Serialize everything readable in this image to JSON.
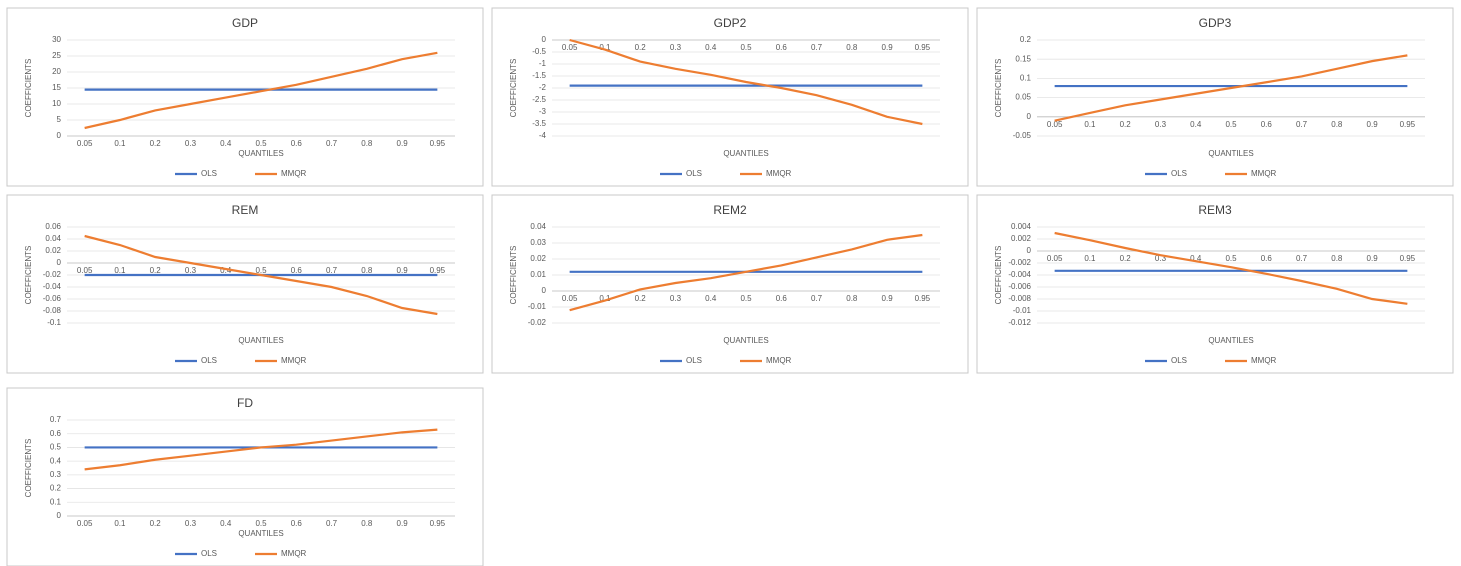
{
  "chart_data": [
    {
      "type": "line",
      "title": "GDP",
      "x_label": "QUANTILES",
      "y_label": "COEFFICIENTS",
      "categories": [
        "0.05",
        "0.1",
        "0.2",
        "0.3",
        "0.4",
        "0.5",
        "0.6",
        "0.7",
        "0.8",
        "0.9",
        "0.95"
      ],
      "series": [
        {
          "name": "OLS",
          "color": "#4472c4",
          "values": [
            14.5,
            14.5,
            14.5,
            14.5,
            14.5,
            14.5,
            14.5,
            14.5,
            14.5,
            14.5,
            14.5
          ]
        },
        {
          "name": "MMQR",
          "color": "#ed7d31",
          "values": [
            2.5,
            5,
            8,
            10,
            12,
            14,
            16,
            18.5,
            21,
            24,
            26
          ]
        }
      ],
      "ylim": [
        0,
        30
      ],
      "yticks": [
        0,
        5,
        10,
        15,
        20,
        25,
        30
      ],
      "grid": true,
      "legend": "bottom"
    },
    {
      "type": "line",
      "title": "GDP2",
      "x_label": "QUANTILES",
      "y_label": "COEFFICIENTS",
      "categories": [
        "0.05",
        "0.1",
        "0.2",
        "0.3",
        "0.4",
        "0.5",
        "0.6",
        "0.7",
        "0.8",
        "0.9",
        "0.95"
      ],
      "series": [
        {
          "name": "OLS",
          "color": "#4472c4",
          "values": [
            -1.9,
            -1.9,
            -1.9,
            -1.9,
            -1.9,
            -1.9,
            -1.9,
            -1.9,
            -1.9,
            -1.9,
            -1.9
          ]
        },
        {
          "name": "MMQR",
          "color": "#ed7d31",
          "values": [
            0,
            -0.4,
            -0.9,
            -1.2,
            -1.45,
            -1.75,
            -2.0,
            -2.3,
            -2.7,
            -3.2,
            -3.5
          ]
        }
      ],
      "ylim": [
        -4,
        0
      ],
      "yticks": [
        -4,
        -3.5,
        -3,
        -2.5,
        -2,
        -1.5,
        -1,
        -0.5,
        0
      ],
      "grid": true,
      "legend": "bottom"
    },
    {
      "type": "line",
      "title": "GDP3",
      "x_label": "QUANTILES",
      "y_label": "COEFFICIENTS",
      "categories": [
        "0.05",
        "0.1",
        "0.2",
        "0.3",
        "0.4",
        "0.5",
        "0.6",
        "0.7",
        "0.8",
        "0.9",
        "0.95"
      ],
      "series": [
        {
          "name": "OLS",
          "color": "#4472c4",
          "values": [
            0.08,
            0.08,
            0.08,
            0.08,
            0.08,
            0.08,
            0.08,
            0.08,
            0.08,
            0.08,
            0.08
          ]
        },
        {
          "name": "MMQR",
          "color": "#ed7d31",
          "values": [
            -0.01,
            0.01,
            0.03,
            0.045,
            0.06,
            0.075,
            0.09,
            0.105,
            0.125,
            0.145,
            0.16
          ]
        }
      ],
      "ylim": [
        -0.05,
        0.2
      ],
      "yticks": [
        -0.05,
        0,
        0.05,
        0.1,
        0.15,
        0.2
      ],
      "grid": true,
      "legend": "bottom"
    },
    {
      "type": "line",
      "title": "REM",
      "x_label": "QUANTILES",
      "y_label": "COEFFICIENTS",
      "categories": [
        "0.05",
        "0.1",
        "0.2",
        "0.3",
        "0.4",
        "0.5",
        "0.6",
        "0.7",
        "0.8",
        "0.9",
        "0.95"
      ],
      "series": [
        {
          "name": "OLS",
          "color": "#4472c4",
          "values": [
            -0.02,
            -0.02,
            -0.02,
            -0.02,
            -0.02,
            -0.02,
            -0.02,
            -0.02,
            -0.02,
            -0.02,
            -0.02
          ]
        },
        {
          "name": "MMQR",
          "color": "#ed7d31",
          "values": [
            0.045,
            0.03,
            0.01,
            0,
            -0.01,
            -0.02,
            -0.03,
            -0.04,
            -0.055,
            -0.075,
            -0.085
          ]
        }
      ],
      "ylim": [
        -0.1,
        0.06
      ],
      "yticks": [
        -0.1,
        -0.08,
        -0.06,
        -0.04,
        -0.02,
        0,
        0.02,
        0.04,
        0.06
      ],
      "grid": true,
      "legend": "bottom"
    },
    {
      "type": "line",
      "title": "REM2",
      "x_label": "QUANTILES",
      "y_label": "COEFFICIENTS",
      "categories": [
        "0.05",
        "0.1",
        "0.2",
        "0.3",
        "0.4",
        "0.5",
        "0.6",
        "0.7",
        "0.8",
        "0.9",
        "0.95"
      ],
      "series": [
        {
          "name": "OLS",
          "color": "#4472c4",
          "values": [
            0.012,
            0.012,
            0.012,
            0.012,
            0.012,
            0.012,
            0.012,
            0.012,
            0.012,
            0.012,
            0.012
          ]
        },
        {
          "name": "MMQR",
          "color": "#ed7d31",
          "values": [
            -0.012,
            -0.006,
            0.001,
            0.005,
            0.008,
            0.012,
            0.016,
            0.021,
            0.026,
            0.032,
            0.035
          ]
        }
      ],
      "ylim": [
        -0.02,
        0.04
      ],
      "yticks": [
        -0.02,
        -0.01,
        0,
        0.01,
        0.02,
        0.03,
        0.04
      ],
      "grid": true,
      "legend": "bottom"
    },
    {
      "type": "line",
      "title": "REM3",
      "x_label": "QUANTILES",
      "y_label": "COEFFICIENTS",
      "categories": [
        "0.05",
        "0.1",
        "0.2",
        "0.3",
        "0.4",
        "0.5",
        "0.6",
        "0.7",
        "0.8",
        "0.9",
        "0.95"
      ],
      "series": [
        {
          "name": "OLS",
          "color": "#4472c4",
          "values": [
            -0.0033,
            -0.0033,
            -0.0033,
            -0.0033,
            -0.0033,
            -0.0033,
            -0.0033,
            -0.0033,
            -0.0033,
            -0.0033,
            -0.0033
          ]
        },
        {
          "name": "MMQR",
          "color": "#ed7d31",
          "values": [
            0.003,
            0.0018,
            0.0005,
            -0.0007,
            -0.0017,
            -0.0027,
            -0.0038,
            -0.005,
            -0.0063,
            -0.008,
            -0.0088
          ]
        }
      ],
      "ylim": [
        -0.012,
        0.004
      ],
      "yticks": [
        -0.012,
        -0.01,
        -0.008,
        -0.006,
        -0.004,
        -0.002,
        0,
        0.002,
        0.004
      ],
      "grid": true,
      "legend": "bottom"
    },
    {
      "type": "line",
      "title": "FD",
      "x_label": "QUANTILES",
      "y_label": "COEFFICIENTS",
      "categories": [
        "0.05",
        "0.1",
        "0.2",
        "0.3",
        "0.4",
        "0.5",
        "0.6",
        "0.7",
        "0.8",
        "0.9",
        "0.95"
      ],
      "series": [
        {
          "name": "OLS",
          "color": "#4472c4",
          "values": [
            0.5,
            0.5,
            0.5,
            0.5,
            0.5,
            0.5,
            0.5,
            0.5,
            0.5,
            0.5,
            0.5
          ]
        },
        {
          "name": "MMQR",
          "color": "#ed7d31",
          "values": [
            0.34,
            0.37,
            0.41,
            0.44,
            0.47,
            0.5,
            0.52,
            0.55,
            0.58,
            0.61,
            0.63
          ]
        }
      ],
      "ylim": [
        0,
        0.7
      ],
      "yticks": [
        0,
        0.1,
        0.2,
        0.3,
        0.4,
        0.5,
        0.6,
        0.7
      ],
      "grid": true,
      "legend": "bottom"
    }
  ]
}
